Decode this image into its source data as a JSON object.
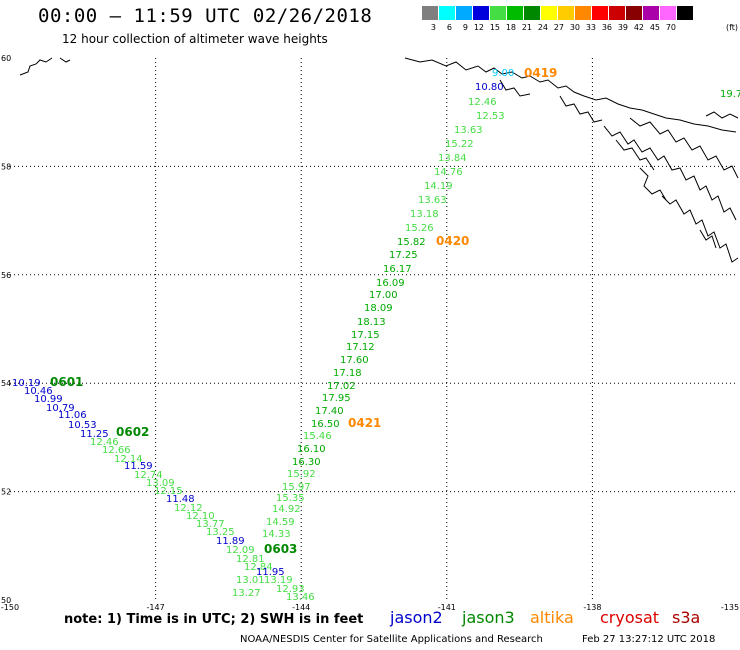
{
  "header": {
    "title": "00:00 – 11:59 UTC 02/26/2018",
    "subtitle": "12 hour collection of altimeter wave heights"
  },
  "legend": {
    "unit": "(ft)",
    "bins": [
      {
        "label": "3",
        "color": "#7f7f7f"
      },
      {
        "label": "6",
        "color": "#00ffff"
      },
      {
        "label": "9",
        "color": "#00aaff"
      },
      {
        "label": "12",
        "color": "#0000dd"
      },
      {
        "label": "15",
        "color": "#44dd44"
      },
      {
        "label": "18",
        "color": "#00bb00"
      },
      {
        "label": "21",
        "color": "#008800"
      },
      {
        "label": "24",
        "color": "#ffff00"
      },
      {
        "label": "27",
        "color": "#ffcc00"
      },
      {
        "label": "30",
        "color": "#ff8800"
      },
      {
        "label": "33",
        "color": "#ff0000"
      },
      {
        "label": "36",
        "color": "#cc0000"
      },
      {
        "label": "39",
        "color": "#880000"
      },
      {
        "label": "42",
        "color": "#aa00aa"
      },
      {
        "label": "45",
        "color": "#ff66ff"
      },
      {
        "label": "70",
        "color": "#000000"
      }
    ]
  },
  "map": {
    "lon_range": [
      -150,
      -135
    ],
    "lat_range": [
      50,
      60
    ],
    "lon_ticks": [
      "-150",
      "-147",
      "-144",
      "-141",
      "-138",
      "-135"
    ],
    "lat_ticks": [
      "60",
      "58",
      "56",
      "54",
      "52",
      "50"
    ],
    "tracks": [
      {
        "satellite": "altika",
        "times": [
          "0419",
          "0420",
          "0421"
        ],
        "color": "#ff8800"
      },
      {
        "satellite": "jason2",
        "times": [],
        "color": "#0000cc"
      },
      {
        "satellite": "jason3",
        "times": [
          "0601",
          "0602",
          "0603"
        ],
        "color": "#008800"
      }
    ],
    "labels": [
      {
        "text": "0419",
        "color": "#ff8800",
        "size": 12
      },
      {
        "text": "10.80",
        "color": "#0000cc",
        "size": 10
      },
      {
        "text": "12.46",
        "color": "#44dd44",
        "size": 10
      },
      {
        "text": "12.53",
        "color": "#44dd44",
        "size": 10
      },
      {
        "text": "13.63",
        "color": "#44dd44",
        "size": 10
      },
      {
        "text": "15.22",
        "color": "#44dd44",
        "size": 10
      },
      {
        "text": "13.84",
        "color": "#44dd44",
        "size": 10
      },
      {
        "text": "14.76",
        "color": "#44dd44",
        "size": 10
      },
      {
        "text": "14.19",
        "color": "#44dd44",
        "size": 10
      },
      {
        "text": "13.63",
        "color": "#44dd44",
        "size": 10
      },
      {
        "text": "13.18",
        "color": "#44dd44",
        "size": 10
      },
      {
        "text": "15.26",
        "color": "#44dd44",
        "size": 10
      },
      {
        "text": "15.82",
        "color": "#00aa00",
        "size": 10
      },
      {
        "text": "0420",
        "color": "#ff8800",
        "size": 12
      },
      {
        "text": "17.25",
        "color": "#00aa00",
        "size": 10
      },
      {
        "text": "16.17",
        "color": "#00aa00",
        "size": 10
      },
      {
        "text": "16.09",
        "color": "#00aa00",
        "size": 10
      },
      {
        "text": "17.00",
        "color": "#00aa00",
        "size": 10
      },
      {
        "text": "18.09",
        "color": "#00aa00",
        "size": 10
      },
      {
        "text": "18.13",
        "color": "#00aa00",
        "size": 10
      },
      {
        "text": "17.15",
        "color": "#00aa00",
        "size": 10
      },
      {
        "text": "17.12",
        "color": "#00aa00",
        "size": 10
      },
      {
        "text": "17.60",
        "color": "#00aa00",
        "size": 10
      },
      {
        "text": "17.18",
        "color": "#00aa00",
        "size": 10
      },
      {
        "text": "17.02",
        "color": "#00aa00",
        "size": 10
      },
      {
        "text": "17.95",
        "color": "#00aa00",
        "size": 10
      },
      {
        "text": "17.40",
        "color": "#00aa00",
        "size": 10
      },
      {
        "text": "16.50",
        "color": "#00aa00",
        "size": 10
      },
      {
        "text": "0421",
        "color": "#ff8800",
        "size": 12
      },
      {
        "text": "15.46",
        "color": "#44dd44",
        "size": 10
      },
      {
        "text": "16.10",
        "color": "#00aa00",
        "size": 10
      },
      {
        "text": "16.30",
        "color": "#00aa00",
        "size": 10
      },
      {
        "text": "15.92",
        "color": "#44dd44",
        "size": 10
      },
      {
        "text": "15.97",
        "color": "#44dd44",
        "size": 10
      },
      {
        "text": "15.35",
        "color": "#44dd44",
        "size": 10
      },
      {
        "text": "14.92",
        "color": "#44dd44",
        "size": 10
      },
      {
        "text": "14.59",
        "color": "#44dd44",
        "size": 10
      },
      {
        "text": "14.33",
        "color": "#44dd44",
        "size": 10
      },
      {
        "text": "10.19",
        "color": "#0000cc",
        "size": 10
      },
      {
        "text": "0601",
        "color": "#008800",
        "size": 12
      },
      {
        "text": "10.46",
        "color": "#0000cc",
        "size": 10
      },
      {
        "text": "10.99",
        "color": "#0000cc",
        "size": 10
      },
      {
        "text": "10.79",
        "color": "#0000cc",
        "size": 10
      },
      {
        "text": "11.06",
        "color": "#0000cc",
        "size": 10
      },
      {
        "text": "10.53",
        "color": "#0000cc",
        "size": 10
      },
      {
        "text": "11.25",
        "color": "#0000cc",
        "size": 10
      },
      {
        "text": "0602",
        "color": "#008800",
        "size": 12
      },
      {
        "text": "12.46",
        "color": "#44dd44",
        "size": 10
      },
      {
        "text": "12.66",
        "color": "#44dd44",
        "size": 10
      },
      {
        "text": "12.14",
        "color": "#44dd44",
        "size": 10
      },
      {
        "text": "11.59",
        "color": "#0000cc",
        "size": 10
      },
      {
        "text": "12.74",
        "color": "#44dd44",
        "size": 10
      },
      {
        "text": "13.09",
        "color": "#44dd44",
        "size": 10
      },
      {
        "text": "12.15",
        "color": "#44dd44",
        "size": 10
      },
      {
        "text": "11.48",
        "color": "#0000cc",
        "size": 10
      },
      {
        "text": "12.12",
        "color": "#44dd44",
        "size": 10
      },
      {
        "text": "12.10",
        "color": "#44dd44",
        "size": 10
      },
      {
        "text": "13.77",
        "color": "#44dd44",
        "size": 10
      },
      {
        "text": "13.25",
        "color": "#44dd44",
        "size": 10
      },
      {
        "text": "11.89",
        "color": "#0000cc",
        "size": 10
      },
      {
        "text": "12.09",
        "color": "#44dd44",
        "size": 10
      },
      {
        "text": "0603",
        "color": "#008800",
        "size": 12
      },
      {
        "text": "12.81",
        "color": "#44dd44",
        "size": 10
      },
      {
        "text": "12.84",
        "color": "#44dd44",
        "size": 10
      },
      {
        "text": "11.95",
        "color": "#0000cc",
        "size": 10
      },
      {
        "text": "13.01",
        "color": "#44dd44",
        "size": 10
      },
      {
        "text": "13.19",
        "color": "#44dd44",
        "size": 10
      },
      {
        "text": "13.27",
        "color": "#44dd44",
        "size": 10
      },
      {
        "text": "12.93",
        "color": "#44dd44",
        "size": 10
      },
      {
        "text": "13.46",
        "color": "#44dd44",
        "size": 10
      },
      {
        "text": "19.7",
        "color": "#00aa00",
        "size": 10
      },
      {
        "text": "9.00",
        "color": "#00ccff",
        "size": 10
      }
    ]
  },
  "footer": {
    "note": "note: 1) Time is in UTC; 2) SWH is in feet",
    "satellites": [
      {
        "name": "jason2",
        "color": "#0000cc"
      },
      {
        "name": "jason3",
        "color": "#008800"
      },
      {
        "name": "altika",
        "color": "#ff8800"
      },
      {
        "name": "cryosat",
        "color": "#dd0000"
      },
      {
        "name": "s3a",
        "color": "#aa0000"
      }
    ],
    "credit": "NOAA/NESDIS Center for Satellite Applications and Research",
    "timestamp": "Feb 27 13:27:12 UTC 2018"
  }
}
